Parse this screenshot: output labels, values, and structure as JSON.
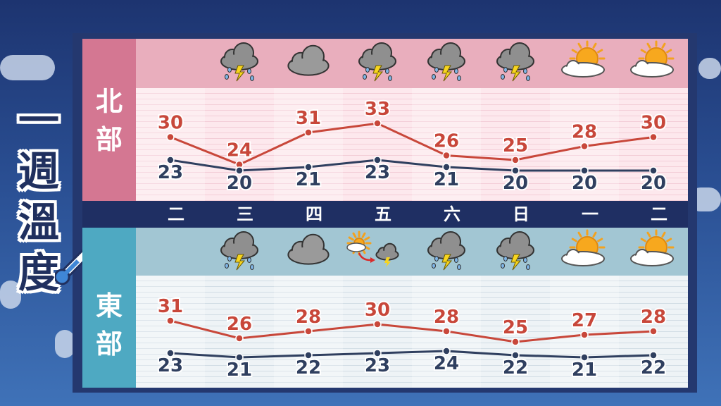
{
  "title": [
    "一",
    "週",
    "溫",
    "度"
  ],
  "days": [
    "二",
    "三",
    "四",
    "五",
    "六",
    "日",
    "一",
    "二"
  ],
  "colors": {
    "high": "#c8473a",
    "low": "#2f3f5f"
  },
  "regions": [
    {
      "key": "north",
      "label": [
        "北",
        "部"
      ],
      "icons": [
        "none",
        "thunderstorm-icon",
        "cloudy-icon",
        "thunderstorm-icon",
        "thunderstorm-icon",
        "thunderstorm-icon",
        "sunny-cloud-icon",
        "sunny-cloud-icon"
      ],
      "high": [
        30,
        24,
        31,
        33,
        26,
        25,
        28,
        30
      ],
      "low": [
        23,
        20,
        21,
        23,
        21,
        20,
        20,
        20
      ]
    },
    {
      "key": "east",
      "label": [
        "東",
        "部"
      ],
      "icons": [
        "none",
        "thunderstorm-icon",
        "cloudy-icon",
        "sun-to-storm-icon",
        "thunderstorm-icon",
        "thunderstorm-icon",
        "sunny-cloud-icon",
        "sunny-cloud-icon"
      ],
      "high": [
        31,
        26,
        28,
        30,
        28,
        25,
        27,
        28
      ],
      "low": [
        23,
        21,
        22,
        23,
        24,
        22,
        21,
        22
      ]
    }
  ],
  "chart_data": [
    {
      "type": "line",
      "title": "北部",
      "categories": [
        "二",
        "三",
        "四",
        "五",
        "六",
        "日",
        "一",
        "二"
      ],
      "series": [
        {
          "values": [
            30,
            24,
            31,
            33,
            26,
            25,
            28,
            30
          ]
        },
        {
          "values": [
            23,
            20,
            21,
            23,
            21,
            20,
            20,
            20
          ]
        }
      ]
    },
    {
      "type": "line",
      "title": "東部",
      "categories": [
        "二",
        "三",
        "四",
        "五",
        "六",
        "日",
        "一",
        "二"
      ],
      "series": [
        {
          "values": [
            31,
            26,
            28,
            30,
            28,
            25,
            27,
            28
          ]
        },
        {
          "values": [
            23,
            21,
            22,
            23,
            24,
            22,
            21,
            22
          ]
        }
      ]
    }
  ]
}
